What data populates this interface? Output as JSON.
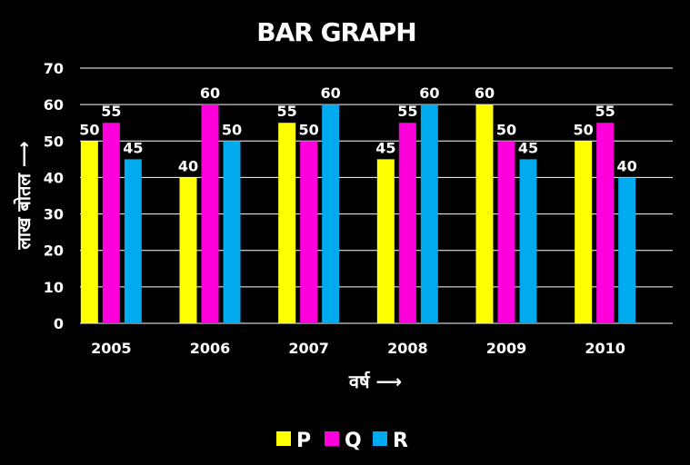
{
  "chart_data": {
    "type": "bar",
    "title": "BAR GRAPH",
    "xlabel": "वर्ष ⟶",
    "ylabel": "लाख बोतल ⟶",
    "categories": [
      "2005",
      "2006",
      "2007",
      "2008",
      "2009",
      "2010"
    ],
    "series": [
      {
        "name": "P",
        "color": "#ffff00",
        "values": [
          50,
          40,
          55,
          45,
          60,
          50
        ]
      },
      {
        "name": "Q",
        "color": "#ff00dd",
        "values": [
          55,
          60,
          50,
          55,
          50,
          55
        ]
      },
      {
        "name": "R",
        "color": "#00aaee",
        "values": [
          45,
          50,
          60,
          60,
          45,
          40
        ]
      }
    ],
    "ylim": [
      0,
      70
    ],
    "yticks": [
      0,
      10,
      20,
      30,
      40,
      50,
      60,
      70
    ],
    "grid": true,
    "legend_position": "bottom-center",
    "data_labels": true
  }
}
